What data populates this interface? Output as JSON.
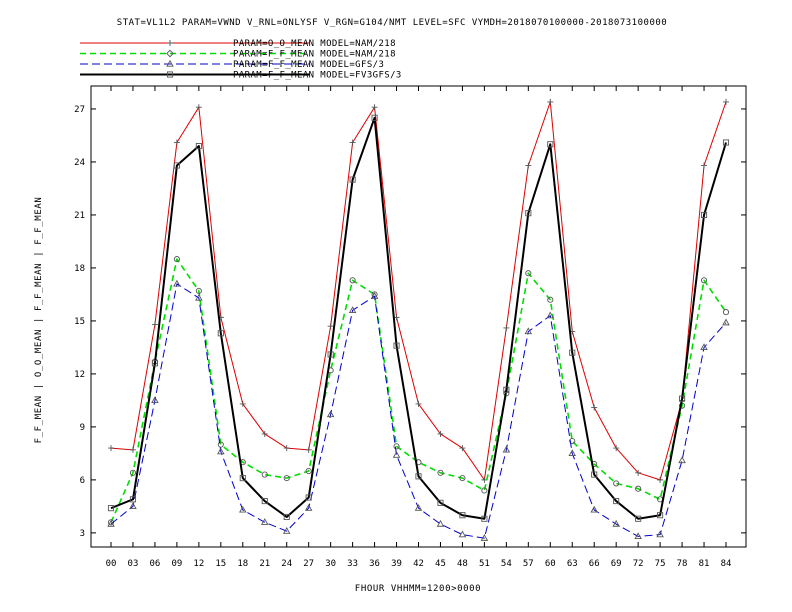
{
  "chart_data": {
    "type": "line",
    "title": "STAT=VL1L2 PARAM=VWND V_RNL=ONLYSF V_RGN=G104/NMT LEVEL=SFC VYMDH=2018070100000-2018073100000",
    "xlabel": "FHOUR VHHMM=1200>0000",
    "ylabel": "F_F_MEAN | O_O_MEAN | F_F_MEAN | F_F_MEAN",
    "categories": [
      "00",
      "03",
      "06",
      "09",
      "12",
      "15",
      "18",
      "21",
      "24",
      "27",
      "30",
      "33",
      "36",
      "39",
      "42",
      "45",
      "48",
      "51",
      "54",
      "57",
      "60",
      "63",
      "66",
      "69",
      "72",
      "75",
      "78",
      "81",
      "84"
    ],
    "yticks": [
      3,
      6,
      9,
      12,
      15,
      18,
      21,
      24,
      27
    ],
    "ylim": [
      2.2,
      28.3
    ],
    "grid": false,
    "legend_position": "top-left",
    "series": [
      {
        "name": "PARAM=O_O_MEAN MODEL=NAM/218",
        "color": "#dd0000",
        "dash": "",
        "width": 1,
        "marker": "plus",
        "values": [
          7.8,
          7.7,
          14.8,
          25.1,
          27.1,
          15.2,
          10.3,
          8.6,
          7.8,
          7.7,
          14.7,
          25.1,
          27.1,
          15.2,
          10.3,
          8.6,
          7.8,
          6.0,
          14.6,
          23.8,
          27.4,
          14.4,
          10.1,
          7.8,
          6.4,
          6.0,
          10.5,
          23.8,
          27.4
        ]
      },
      {
        "name": "PARAM=F_F_MEAN MODEL=NAM/218",
        "color": "#00dd00",
        "dash": "6,4",
        "width": 1.6,
        "marker": "circle",
        "values": [
          3.6,
          6.4,
          12.7,
          18.5,
          16.7,
          8.0,
          7.0,
          6.3,
          6.1,
          6.5,
          12.2,
          17.3,
          16.5,
          7.9,
          7.0,
          6.4,
          6.1,
          5.4,
          10.9,
          17.7,
          16.2,
          8.2,
          6.9,
          5.8,
          5.5,
          4.9,
          10.2,
          17.3,
          15.5
        ]
      },
      {
        "name": "PARAM=F_F_MEAN MODEL=GFS/3",
        "color": "#0000cc",
        "dash": "8,4",
        "width": 1,
        "marker": "triangle",
        "values": [
          3.5,
          4.5,
          10.5,
          17.1,
          16.3,
          7.6,
          4.3,
          3.6,
          3.1,
          4.4,
          9.7,
          15.6,
          16.4,
          7.4,
          4.4,
          3.5,
          2.9,
          2.7,
          7.7,
          14.4,
          15.3,
          7.5,
          4.3,
          3.5,
          2.8,
          2.9,
          7.1,
          13.5,
          14.9
        ]
      },
      {
        "name": "PARAM=F_F_MEAN MODEL=FV3GFS/3",
        "color": "#000000",
        "dash": "",
        "width": 2,
        "marker": "square",
        "values": [
          4.4,
          4.9,
          12.6,
          23.8,
          24.9,
          14.3,
          6.1,
          4.8,
          3.9,
          5.0,
          13.1,
          23.0,
          26.5,
          13.6,
          6.2,
          4.7,
          4.0,
          3.8,
          11.1,
          21.1,
          25.0,
          13.2,
          6.3,
          4.8,
          3.8,
          4.0,
          10.6,
          21.0,
          25.1
        ]
      }
    ]
  }
}
